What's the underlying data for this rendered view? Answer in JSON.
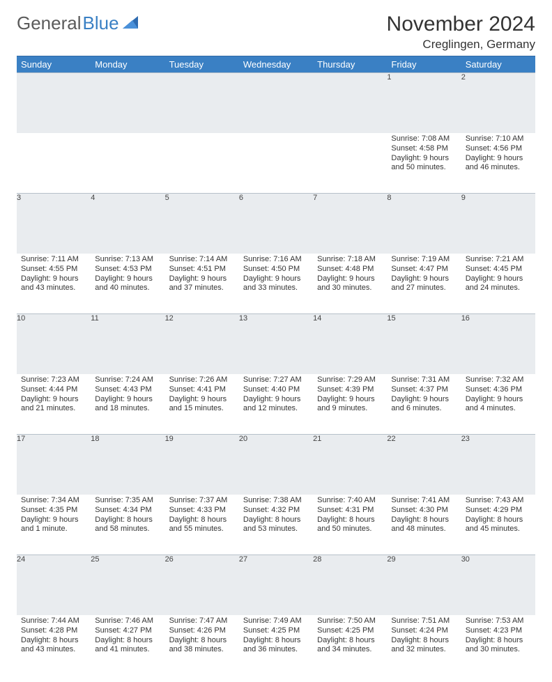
{
  "brand": {
    "name1": "General",
    "name2": "Blue"
  },
  "title": "November 2024",
  "location": "Creglingen, Germany",
  "weekdays": [
    "Sunday",
    "Monday",
    "Tuesday",
    "Wednesday",
    "Thursday",
    "Friday",
    "Saturday"
  ],
  "colors": {
    "header_bg": "#3a80c4",
    "header_text": "#ffffff",
    "daynum_bg": "#e9ecef",
    "text": "#333333",
    "brand_gray": "#5b5b5b",
    "brand_blue": "#3a80c4"
  },
  "weeks": [
    {
      "nums": [
        "",
        "",
        "",
        "",
        "",
        "1",
        "2"
      ],
      "cells": [
        null,
        null,
        null,
        null,
        null,
        {
          "sunrise": "Sunrise: 7:08 AM",
          "sunset": "Sunset: 4:58 PM",
          "day1": "Daylight: 9 hours",
          "day2": "and 50 minutes."
        },
        {
          "sunrise": "Sunrise: 7:10 AM",
          "sunset": "Sunset: 4:56 PM",
          "day1": "Daylight: 9 hours",
          "day2": "and 46 minutes."
        }
      ]
    },
    {
      "nums": [
        "3",
        "4",
        "5",
        "6",
        "7",
        "8",
        "9"
      ],
      "cells": [
        {
          "sunrise": "Sunrise: 7:11 AM",
          "sunset": "Sunset: 4:55 PM",
          "day1": "Daylight: 9 hours",
          "day2": "and 43 minutes."
        },
        {
          "sunrise": "Sunrise: 7:13 AM",
          "sunset": "Sunset: 4:53 PM",
          "day1": "Daylight: 9 hours",
          "day2": "and 40 minutes."
        },
        {
          "sunrise": "Sunrise: 7:14 AM",
          "sunset": "Sunset: 4:51 PM",
          "day1": "Daylight: 9 hours",
          "day2": "and 37 minutes."
        },
        {
          "sunrise": "Sunrise: 7:16 AM",
          "sunset": "Sunset: 4:50 PM",
          "day1": "Daylight: 9 hours",
          "day2": "and 33 minutes."
        },
        {
          "sunrise": "Sunrise: 7:18 AM",
          "sunset": "Sunset: 4:48 PM",
          "day1": "Daylight: 9 hours",
          "day2": "and 30 minutes."
        },
        {
          "sunrise": "Sunrise: 7:19 AM",
          "sunset": "Sunset: 4:47 PM",
          "day1": "Daylight: 9 hours",
          "day2": "and 27 minutes."
        },
        {
          "sunrise": "Sunrise: 7:21 AM",
          "sunset": "Sunset: 4:45 PM",
          "day1": "Daylight: 9 hours",
          "day2": "and 24 minutes."
        }
      ]
    },
    {
      "nums": [
        "10",
        "11",
        "12",
        "13",
        "14",
        "15",
        "16"
      ],
      "cells": [
        {
          "sunrise": "Sunrise: 7:23 AM",
          "sunset": "Sunset: 4:44 PM",
          "day1": "Daylight: 9 hours",
          "day2": "and 21 minutes."
        },
        {
          "sunrise": "Sunrise: 7:24 AM",
          "sunset": "Sunset: 4:43 PM",
          "day1": "Daylight: 9 hours",
          "day2": "and 18 minutes."
        },
        {
          "sunrise": "Sunrise: 7:26 AM",
          "sunset": "Sunset: 4:41 PM",
          "day1": "Daylight: 9 hours",
          "day2": "and 15 minutes."
        },
        {
          "sunrise": "Sunrise: 7:27 AM",
          "sunset": "Sunset: 4:40 PM",
          "day1": "Daylight: 9 hours",
          "day2": "and 12 minutes."
        },
        {
          "sunrise": "Sunrise: 7:29 AM",
          "sunset": "Sunset: 4:39 PM",
          "day1": "Daylight: 9 hours",
          "day2": "and 9 minutes."
        },
        {
          "sunrise": "Sunrise: 7:31 AM",
          "sunset": "Sunset: 4:37 PM",
          "day1": "Daylight: 9 hours",
          "day2": "and 6 minutes."
        },
        {
          "sunrise": "Sunrise: 7:32 AM",
          "sunset": "Sunset: 4:36 PM",
          "day1": "Daylight: 9 hours",
          "day2": "and 4 minutes."
        }
      ]
    },
    {
      "nums": [
        "17",
        "18",
        "19",
        "20",
        "21",
        "22",
        "23"
      ],
      "cells": [
        {
          "sunrise": "Sunrise: 7:34 AM",
          "sunset": "Sunset: 4:35 PM",
          "day1": "Daylight: 9 hours",
          "day2": "and 1 minute."
        },
        {
          "sunrise": "Sunrise: 7:35 AM",
          "sunset": "Sunset: 4:34 PM",
          "day1": "Daylight: 8 hours",
          "day2": "and 58 minutes."
        },
        {
          "sunrise": "Sunrise: 7:37 AM",
          "sunset": "Sunset: 4:33 PM",
          "day1": "Daylight: 8 hours",
          "day2": "and 55 minutes."
        },
        {
          "sunrise": "Sunrise: 7:38 AM",
          "sunset": "Sunset: 4:32 PM",
          "day1": "Daylight: 8 hours",
          "day2": "and 53 minutes."
        },
        {
          "sunrise": "Sunrise: 7:40 AM",
          "sunset": "Sunset: 4:31 PM",
          "day1": "Daylight: 8 hours",
          "day2": "and 50 minutes."
        },
        {
          "sunrise": "Sunrise: 7:41 AM",
          "sunset": "Sunset: 4:30 PM",
          "day1": "Daylight: 8 hours",
          "day2": "and 48 minutes."
        },
        {
          "sunrise": "Sunrise: 7:43 AM",
          "sunset": "Sunset: 4:29 PM",
          "day1": "Daylight: 8 hours",
          "day2": "and 45 minutes."
        }
      ]
    },
    {
      "nums": [
        "24",
        "25",
        "26",
        "27",
        "28",
        "29",
        "30"
      ],
      "cells": [
        {
          "sunrise": "Sunrise: 7:44 AM",
          "sunset": "Sunset: 4:28 PM",
          "day1": "Daylight: 8 hours",
          "day2": "and 43 minutes."
        },
        {
          "sunrise": "Sunrise: 7:46 AM",
          "sunset": "Sunset: 4:27 PM",
          "day1": "Daylight: 8 hours",
          "day2": "and 41 minutes."
        },
        {
          "sunrise": "Sunrise: 7:47 AM",
          "sunset": "Sunset: 4:26 PM",
          "day1": "Daylight: 8 hours",
          "day2": "and 38 minutes."
        },
        {
          "sunrise": "Sunrise: 7:49 AM",
          "sunset": "Sunset: 4:25 PM",
          "day1": "Daylight: 8 hours",
          "day2": "and 36 minutes."
        },
        {
          "sunrise": "Sunrise: 7:50 AM",
          "sunset": "Sunset: 4:25 PM",
          "day1": "Daylight: 8 hours",
          "day2": "and 34 minutes."
        },
        {
          "sunrise": "Sunrise: 7:51 AM",
          "sunset": "Sunset: 4:24 PM",
          "day1": "Daylight: 8 hours",
          "day2": "and 32 minutes."
        },
        {
          "sunrise": "Sunrise: 7:53 AM",
          "sunset": "Sunset: 4:23 PM",
          "day1": "Daylight: 8 hours",
          "day2": "and 30 minutes."
        }
      ]
    }
  ]
}
